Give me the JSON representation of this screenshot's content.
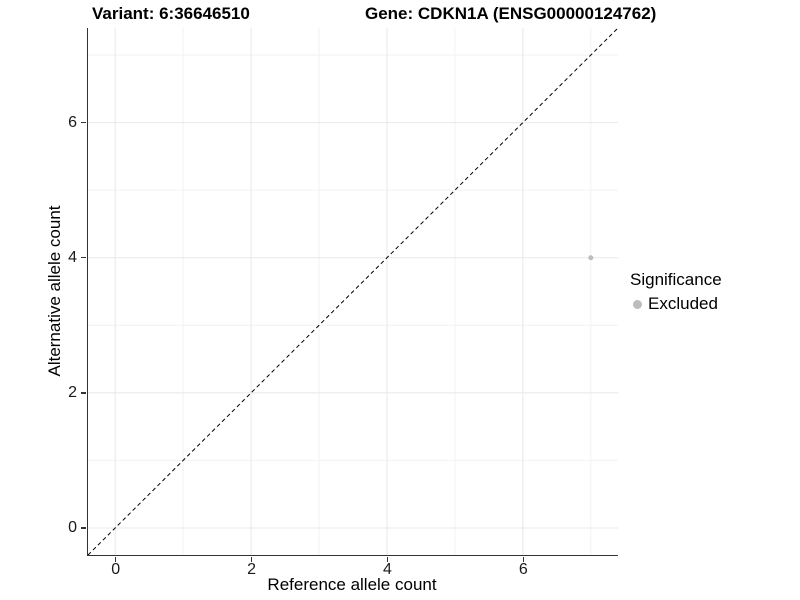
{
  "chart_data": {
    "type": "scatter",
    "title_left": "Variant: 6:36646510",
    "title_right": "Gene: CDKN1A (ENSG00000124762)",
    "xlabel": "Reference allele count",
    "ylabel": "Alternative allele count",
    "xlim": [
      -0.4,
      7.4
    ],
    "ylim": [
      -0.4,
      7.4
    ],
    "x_major_ticks": [
      0,
      2,
      4,
      6
    ],
    "x_minor_gridlines": [
      1,
      3,
      5,
      7
    ],
    "y_major_ticks": [
      0,
      2,
      4,
      6
    ],
    "y_minor_gridlines": [
      1,
      3,
      5,
      7
    ],
    "grid": "on",
    "reference_line": {
      "type": "identity",
      "style": "dashed",
      "color": "#000000"
    },
    "series": [
      {
        "name": "Excluded",
        "color": "#bdbdbd",
        "points": [
          {
            "x": 7,
            "y": 4
          }
        ]
      }
    ],
    "legend": {
      "title": "Significance",
      "position": "right",
      "items": [
        {
          "label": "Excluded",
          "color": "#bdbdbd"
        }
      ]
    }
  }
}
